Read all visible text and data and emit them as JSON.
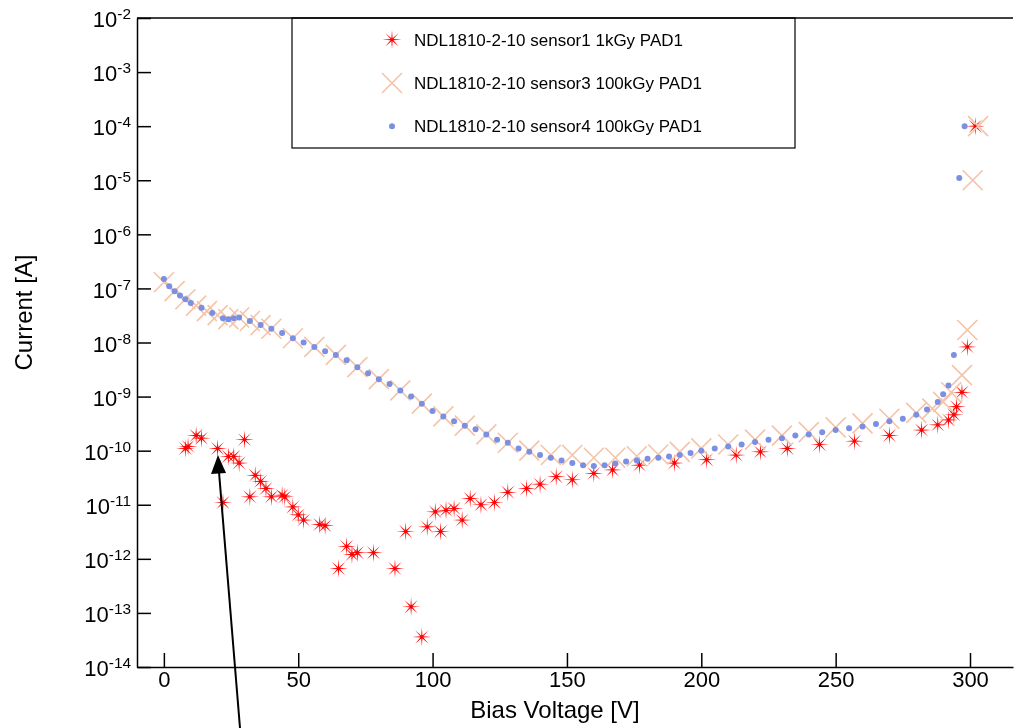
{
  "chart_data": {
    "type": "scatter",
    "xlabel": "Bias Voltage [V]",
    "ylabel": "Current [A]",
    "log": "y",
    "legend": "top",
    "grid": false,
    "xlim": [
      -10,
      316
    ],
    "xticks": [
      0,
      50,
      100,
      150,
      200,
      250,
      300
    ],
    "ylim": [
      1e-14,
      0.01
    ],
    "yticks": [
      {
        "value": 1e-14,
        "label": "10$^{-14}$"
      },
      {
        "value": 1e-13,
        "label": "10$^{-13}$"
      },
      {
        "value": 1e-12,
        "label": "10$^{-12}$"
      },
      {
        "value": 1e-11,
        "label": "10$^{-11}$"
      },
      {
        "value": 1e-10,
        "label": "10$^{-10}$"
      },
      {
        "value": 1e-09,
        "label": "10$^{-9}$"
      },
      {
        "value": 1e-08,
        "label": "10$^{-8}$"
      },
      {
        "value": 1e-07,
        "label": "10$^{-7}$"
      },
      {
        "value": 1e-06,
        "label": "10$^{-6}$"
      },
      {
        "value": 1e-05,
        "label": "10$^{-5}$"
      },
      {
        "value": 0.0001,
        "label": "10$^{-4}$"
      },
      {
        "value": 0.001,
        "label": "10$^{-3}$"
      },
      {
        "value": 0.01,
        "label": "10$^{-2}$"
      }
    ],
    "series": [
      {
        "name": "NDL1810-2-10 sensor1 1kGy PAD1",
        "color": "#ff0000",
        "marker": "star",
        "x": [
          8,
          9,
          12,
          14,
          20,
          22,
          24,
          26,
          28,
          30,
          32,
          34,
          36,
          38,
          40,
          44,
          45,
          48,
          50,
          52,
          58,
          60,
          65,
          68,
          70,
          72,
          78,
          86,
          90,
          92,
          96,
          98,
          101,
          103,
          105,
          108,
          111,
          114,
          118,
          123,
          128,
          135,
          140,
          146,
          152,
          160,
          167,
          177,
          190,
          202,
          213,
          222,
          232,
          244,
          257,
          270,
          282,
          288,
          292,
          294,
          295,
          297,
          299,
          302
        ],
        "values": [
          1.1e-10,
          1.2e-10,
          1.9e-10,
          1.7e-10,
          1.1e-10,
          1.1e-11,
          7.8e-11,
          7.8e-11,
          5.9e-11,
          1.6e-10,
          1.4e-11,
          3.5e-11,
          2.7e-11,
          2e-11,
          1.4e-11,
          1.5e-11,
          1.4e-11,
          9.1e-12,
          6.5e-12,
          5.2e-12,
          4.3e-12,
          4.1e-12,
          6.6e-13,
          1.7e-12,
          1.2e-12,
          1.3e-12,
          1.3e-12,
          6.6e-13,
          3.2e-12,
          1.3e-13,
          3.6e-14,
          3.9e-12,
          7.4e-12,
          3.2e-12,
          7.9e-12,
          8.5e-12,
          5.2e-12,
          1.3e-11,
          1e-11,
          1.1e-11,
          1.7e-11,
          2e-11,
          2.4e-11,
          3.3e-11,
          2.9e-11,
          3.8e-11,
          4.4e-11,
          5.4e-11,
          5.9e-11,
          6.8e-11,
          8.3e-11,
          9.5e-11,
          1.1e-10,
          1.3e-10,
          1.5e-10,
          1.9e-10,
          2.4e-10,
          3e-10,
          3.7e-10,
          4.6e-10,
          6.5e-10,
          1.2e-09,
          8.3e-09,
          0.0001
        ]
      },
      {
        "name": "NDL1810-2-10 sensor3 100kGy PAD1",
        "color": "#f4c3a8",
        "marker": "cross",
        "x": [
          0,
          4,
          8,
          12,
          16,
          20,
          24,
          28,
          32,
          36,
          40,
          48,
          56,
          64,
          72,
          80,
          88,
          96,
          104,
          112,
          120,
          128,
          136,
          144,
          152,
          160,
          168,
          176,
          184,
          192,
          200,
          210,
          220,
          230,
          240,
          250,
          260,
          270,
          280,
          286,
          290,
          293,
          297,
          299,
          301,
          303
        ],
        "values": [
          1.3e-07,
          8.9e-08,
          6.3e-08,
          4.8e-08,
          3.8e-08,
          3.2e-08,
          2.7e-08,
          2.9e-08,
          2.5e-08,
          2.1e-08,
          1.8e-08,
          1.2e-08,
          8.3e-09,
          5.9e-09,
          3.5e-09,
          2.1e-09,
          1.3e-09,
          7.4e-10,
          4.3e-10,
          2.9e-10,
          2e-10,
          1.4e-10,
          1e-10,
          8.3e-11,
          8.3e-11,
          7.4e-11,
          7.4e-11,
          7.9e-11,
          8.5e-11,
          9.5e-11,
          1.1e-10,
          1.3e-10,
          1.6e-10,
          1.9e-10,
          2.2e-10,
          2.7e-10,
          3.2e-10,
          3.9e-10,
          5e-10,
          6e-10,
          8e-10,
          1.2e-09,
          2.5e-09,
          1.7e-08,
          1e-05,
          0.0001
        ]
      },
      {
        "name": "NDL1810-2-10 sensor4 100kGy PAD1",
        "color": "#7b8fe3",
        "marker": "circle",
        "x": [
          0,
          2,
          4,
          6,
          8,
          10,
          14,
          18,
          22,
          24,
          26,
          28,
          32,
          36,
          40,
          44,
          48,
          52,
          56,
          60,
          64,
          68,
          72,
          76,
          80,
          84,
          88,
          92,
          96,
          100,
          104,
          108,
          112,
          116,
          120,
          124,
          128,
          132,
          136,
          140,
          144,
          148,
          152,
          156,
          160,
          164,
          168,
          172,
          176,
          180,
          184,
          188,
          192,
          196,
          200,
          205,
          210,
          215,
          220,
          225,
          230,
          235,
          240,
          245,
          250,
          255,
          260,
          265,
          270,
          275,
          280,
          284,
          288,
          290,
          292,
          294,
          296,
          298
        ],
        "values": [
          1.5e-07,
          1.1e-07,
          8.9e-08,
          7.4e-08,
          6.3e-08,
          5.4e-08,
          4.4e-08,
          3.5e-08,
          2.8e-08,
          2.7e-08,
          2.8e-08,
          2.9e-08,
          2.5e-08,
          2.1e-08,
          1.8e-08,
          1.5e-08,
          1.2e-08,
          1e-08,
          8.3e-09,
          6.9e-09,
          5.9e-09,
          4.7e-09,
          3.5e-09,
          2.7e-09,
          2.1e-09,
          1.7e-09,
          1.3e-09,
          1e-09,
          7.4e-10,
          5.4e-10,
          4.3e-10,
          3.5e-10,
          2.9e-10,
          2.5e-10,
          2e-10,
          1.6e-10,
          1.4e-10,
          1.1e-10,
          9.5e-11,
          8.3e-11,
          7.4e-11,
          6.6e-11,
          5.9e-11,
          5.4e-11,
          5.2e-11,
          5.4e-11,
          5.8e-11,
          6.3e-11,
          6.6e-11,
          7.1e-11,
          7.4e-11,
          7.8e-11,
          8.3e-11,
          9.1e-11,
          1e-10,
          1.1e-10,
          1.2e-10,
          1.3e-10,
          1.45e-10,
          1.6e-10,
          1.7e-10,
          1.9e-10,
          2e-10,
          2.2e-10,
          2.4e-10,
          2.6e-10,
          2.8e-10,
          3.1e-10,
          3.5e-10,
          3.9e-10,
          4.6e-10,
          5.8e-10,
          7.9e-10,
          1.1e-09,
          1.6e-09,
          5.9e-09,
          1.1e-05,
          0.0001
        ]
      }
    ]
  }
}
